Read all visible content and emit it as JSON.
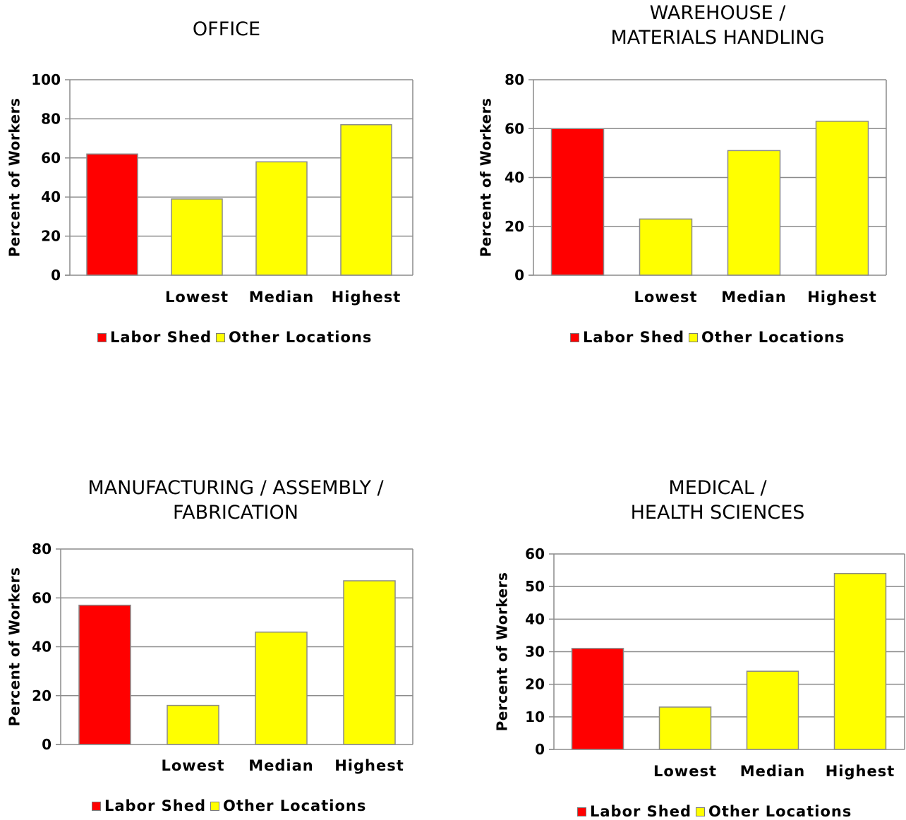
{
  "legend": {
    "items": [
      {
        "label": "Labor Shed",
        "color": "#ff0000"
      },
      {
        "label": "Other Locations",
        "color": "#ffff00"
      }
    ]
  },
  "chart_data": [
    {
      "type": "bar",
      "title_lines": [
        "OFFICE"
      ],
      "ylabel": "Percent of Workers",
      "categories": [
        "",
        "Lowest",
        "Median",
        "Highest"
      ],
      "values": [
        62,
        39,
        58,
        77
      ],
      "ylim": [
        0,
        100
      ],
      "yticks": [
        0,
        20,
        40,
        60,
        80,
        100
      ],
      "bar_colors": [
        "#ff0000",
        "#ffff00",
        "#ffff00",
        "#ffff00"
      ],
      "grid": true,
      "legend_position": "bottom"
    },
    {
      "type": "bar",
      "title_lines": [
        "WAREHOUSE /",
        "MATERIALS HANDLING"
      ],
      "ylabel": "Percent of Workers",
      "categories": [
        "",
        "Lowest",
        "Median",
        "Highest"
      ],
      "values": [
        60,
        23,
        51,
        63
      ],
      "ylim": [
        0,
        80
      ],
      "yticks": [
        0,
        20,
        40,
        60,
        80
      ],
      "bar_colors": [
        "#ff0000",
        "#ffff00",
        "#ffff00",
        "#ffff00"
      ],
      "grid": true,
      "legend_position": "bottom"
    },
    {
      "type": "bar",
      "title_lines": [
        "MANUFACTURING / ASSEMBLY /",
        "FABRICATION"
      ],
      "ylabel": "Percent of Workers",
      "categories": [
        "",
        "Lowest",
        "Median",
        "Highest"
      ],
      "values": [
        57,
        16,
        46,
        67
      ],
      "ylim": [
        0,
        80
      ],
      "yticks": [
        0,
        20,
        40,
        60,
        80
      ],
      "bar_colors": [
        "#ff0000",
        "#ffff00",
        "#ffff00",
        "#ffff00"
      ],
      "grid": true,
      "legend_position": "bottom"
    },
    {
      "type": "bar",
      "title_lines": [
        "MEDICAL /",
        "HEALTH SCIENCES"
      ],
      "ylabel": "Percent of Workers",
      "categories": [
        "",
        "Lowest",
        "Median",
        "Highest"
      ],
      "values": [
        31,
        13,
        24,
        54
      ],
      "ylim": [
        0,
        60
      ],
      "yticks": [
        0,
        10,
        20,
        30,
        40,
        50,
        60
      ],
      "bar_colors": [
        "#ff0000",
        "#ffff00",
        "#ffff00",
        "#ffff00"
      ],
      "grid": true,
      "legend_position": "bottom"
    }
  ]
}
